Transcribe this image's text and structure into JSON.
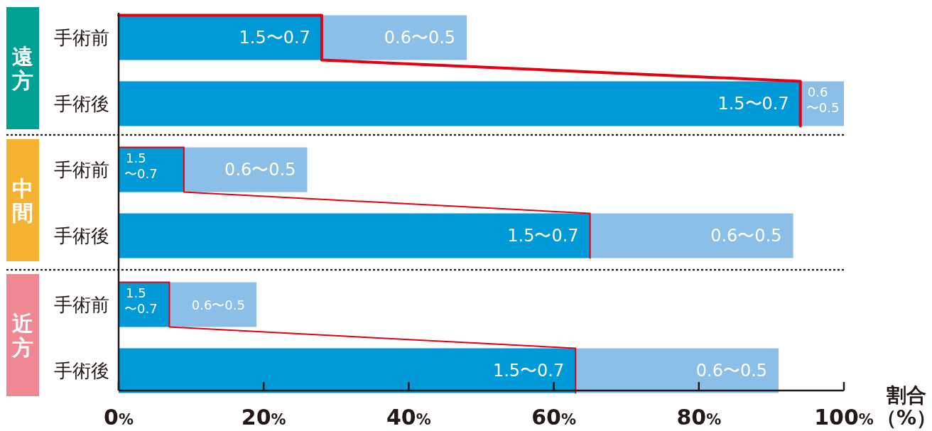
{
  "chart_data": [
    {
      "type": "bar",
      "orientation": "horizontal",
      "stacked": true,
      "title": "遠方",
      "categories": [
        "手術前",
        "手術後"
      ],
      "series": [
        {
          "name": "1.5〜0.7",
          "color": "#009ad9",
          "values": [
            28,
            94
          ]
        },
        {
          "name": "0.6〜0.5",
          "color": "#8bbfe8",
          "values": [
            20,
            6
          ]
        }
      ],
      "xlim": [
        0,
        100
      ],
      "tick_labels": "y"
    },
    {
      "type": "bar",
      "orientation": "horizontal",
      "stacked": true,
      "title": "中間",
      "categories": [
        "手術前",
        "手術後"
      ],
      "series": [
        {
          "name": "1.5〜0.7",
          "color": "#009ad9",
          "values": [
            9,
            65
          ]
        },
        {
          "name": "0.6〜0.5",
          "color": "#8bbfe8",
          "values": [
            17,
            28
          ]
        }
      ],
      "xlim": [
        0,
        100
      ],
      "tick_labels": "y"
    },
    {
      "type": "bar",
      "orientation": "horizontal",
      "stacked": true,
      "title": "近方",
      "categories": [
        "手術前",
        "手術後"
      ],
      "series": [
        {
          "name": "1.5〜0.7",
          "color": "#009ad9",
          "values": [
            7,
            63
          ]
        },
        {
          "name": "0.6〜0.5",
          "color": "#8bbfe8",
          "values": [
            12,
            28
          ]
        }
      ],
      "xlim": [
        0,
        100
      ],
      "xticks": [
        {
          "value": 0,
          "label": "0%"
        },
        {
          "value": 20,
          "label": "20%"
        },
        {
          "value": 40,
          "label": "40%"
        },
        {
          "value": 60,
          "label": "60%"
        },
        {
          "value": 80,
          "label": "80%"
        },
        {
          "value": 100,
          "label": "100%"
        }
      ],
      "xlabel": "割合（%）"
    }
  ]
}
